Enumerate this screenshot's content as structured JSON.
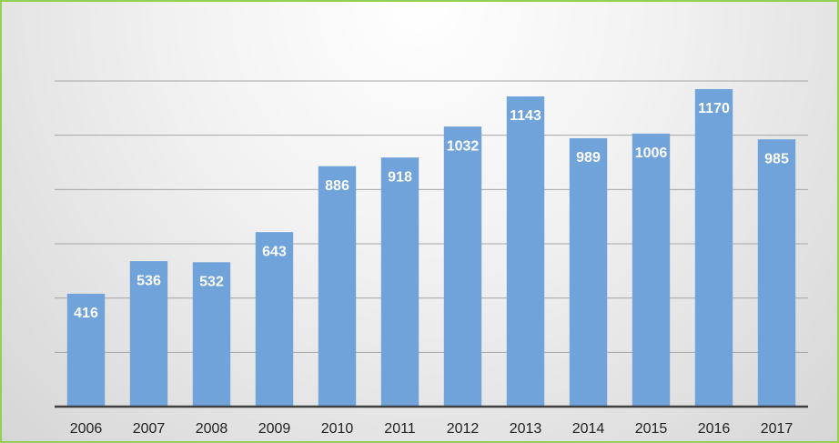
{
  "chart_data": {
    "type": "bar",
    "categories": [
      "2006",
      "2007",
      "2008",
      "2009",
      "2010",
      "2011",
      "2012",
      "2013",
      "2014",
      "2015",
      "2016",
      "2017"
    ],
    "values": [
      416,
      536,
      532,
      643,
      886,
      918,
      1032,
      1143,
      989,
      1006,
      1170,
      985
    ],
    "color": "#6fa3d9",
    "ylim": [
      0,
      1200
    ],
    "yticks": [
      0,
      200,
      400,
      600,
      800,
      1000,
      1200
    ],
    "grid": true,
    "data_labels": true
  }
}
